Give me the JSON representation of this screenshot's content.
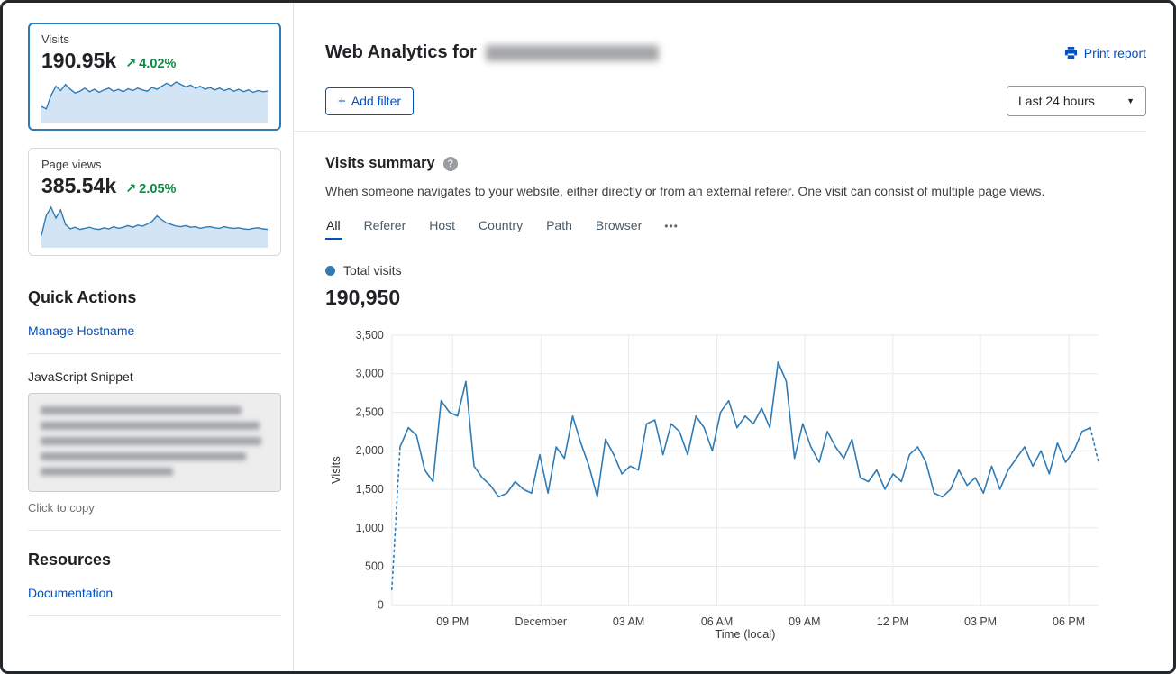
{
  "icons": {
    "trend_up": "↗",
    "plus": "+",
    "chevron_down": "▼",
    "help": "?",
    "more": "•••"
  },
  "colors": {
    "accent_blue": "#0051c3",
    "chart_blue": "#2e7bb5",
    "positive_green": "#0e8a44",
    "spark_fill": "#d3e5f4",
    "grid_gray": "#e9e9e9"
  },
  "sidebar": {
    "visits_card": {
      "label": "Visits",
      "value": "190.95k",
      "delta": "4.02%"
    },
    "pageviews_card": {
      "label": "Page views",
      "value": "385.54k",
      "delta": "2.05%"
    },
    "quick_actions_title": "Quick Actions",
    "manage_hostname": "Manage Hostname",
    "javascript_snippet": "JavaScript Snippet",
    "click_to_copy": "Click to copy",
    "resources_title": "Resources",
    "documentation": "Documentation"
  },
  "header": {
    "title": "Web Analytics for",
    "print_report": "Print report",
    "add_filter": "Add filter",
    "time_range": "Last 24 hours"
  },
  "summary": {
    "title": "Visits summary",
    "description": "When someone navigates to your website, either directly or from an external referer. One visit can consist of multiple page views.",
    "tabs": [
      "All",
      "Referer",
      "Host",
      "Country",
      "Path",
      "Browser"
    ],
    "active_tab": "All",
    "legend_label": "Total visits",
    "total_visits": "190,950"
  },
  "chart_data": [
    {
      "id": "visits_timeseries",
      "type": "line",
      "series_name": "Total visits",
      "xlabel": "Time (local)",
      "ylabel": "Visits",
      "ylim": [
        0,
        3500
      ],
      "yticks": [
        0,
        500,
        1000,
        1500,
        2000,
        2500,
        3000,
        3500
      ],
      "xticks": [
        {
          "label": "09 PM",
          "pos": 0.086
        },
        {
          "label": "December",
          "pos": 0.211
        },
        {
          "label": "03 AM",
          "pos": 0.335
        },
        {
          "label": "06 AM",
          "pos": 0.46
        },
        {
          "label": "09 AM",
          "pos": 0.584
        },
        {
          "label": "12 PM",
          "pos": 0.709
        },
        {
          "label": "03 PM",
          "pos": 0.833
        },
        {
          "label": "06 PM",
          "pos": 0.958
        }
      ],
      "grid": true,
      "values": [
        200,
        2050,
        2300,
        2200,
        1750,
        1600,
        2650,
        2500,
        2450,
        2900,
        1800,
        1650,
        1550,
        1400,
        1450,
        1600,
        1500,
        1450,
        1950,
        1450,
        2050,
        1900,
        2450,
        2100,
        1800,
        1400,
        2150,
        1950,
        1700,
        1800,
        1750,
        2350,
        2400,
        1950,
        2350,
        2250,
        1950,
        2450,
        2300,
        2000,
        2500,
        2650,
        2300,
        2450,
        2350,
        2550,
        2300,
        3150,
        2900,
        1900,
        2350,
        2050,
        1850,
        2250,
        2050,
        1900,
        2150,
        1650,
        1600,
        1750,
        1500,
        1700,
        1600,
        1950,
        2050,
        1850,
        1450,
        1400,
        1500,
        1750,
        1550,
        1650,
        1450,
        1800,
        1500,
        1750,
        1900,
        2050,
        1800,
        2000,
        1700,
        2100,
        1850,
        2000,
        2250,
        2300,
        1850
      ],
      "dashed_head_points": 2,
      "dashed_tail_points": 2
    },
    {
      "id": "visits_sparkline",
      "type": "area",
      "values": [
        22,
        18,
        40,
        55,
        48,
        58,
        50,
        44,
        47,
        52,
        46,
        50,
        45,
        49,
        52,
        47,
        50,
        46,
        51,
        48,
        52,
        49,
        47,
        53,
        50,
        55,
        60,
        56,
        62,
        58,
        54,
        57,
        52,
        55,
        50,
        53,
        49,
        52,
        48,
        51,
        47,
        50,
        46,
        49,
        45,
        48,
        46,
        47
      ]
    },
    {
      "id": "pageviews_sparkline",
      "type": "area",
      "values": [
        18,
        55,
        70,
        50,
        65,
        38,
        30,
        33,
        29,
        31,
        33,
        30,
        29,
        32,
        30,
        34,
        31,
        33,
        36,
        33,
        37,
        35,
        39,
        44,
        54,
        47,
        41,
        38,
        35,
        34,
        36,
        33,
        34,
        31,
        33,
        34,
        32,
        31,
        34,
        32,
        31,
        32,
        30,
        29,
        31,
        32,
        30,
        29
      ]
    }
  ]
}
